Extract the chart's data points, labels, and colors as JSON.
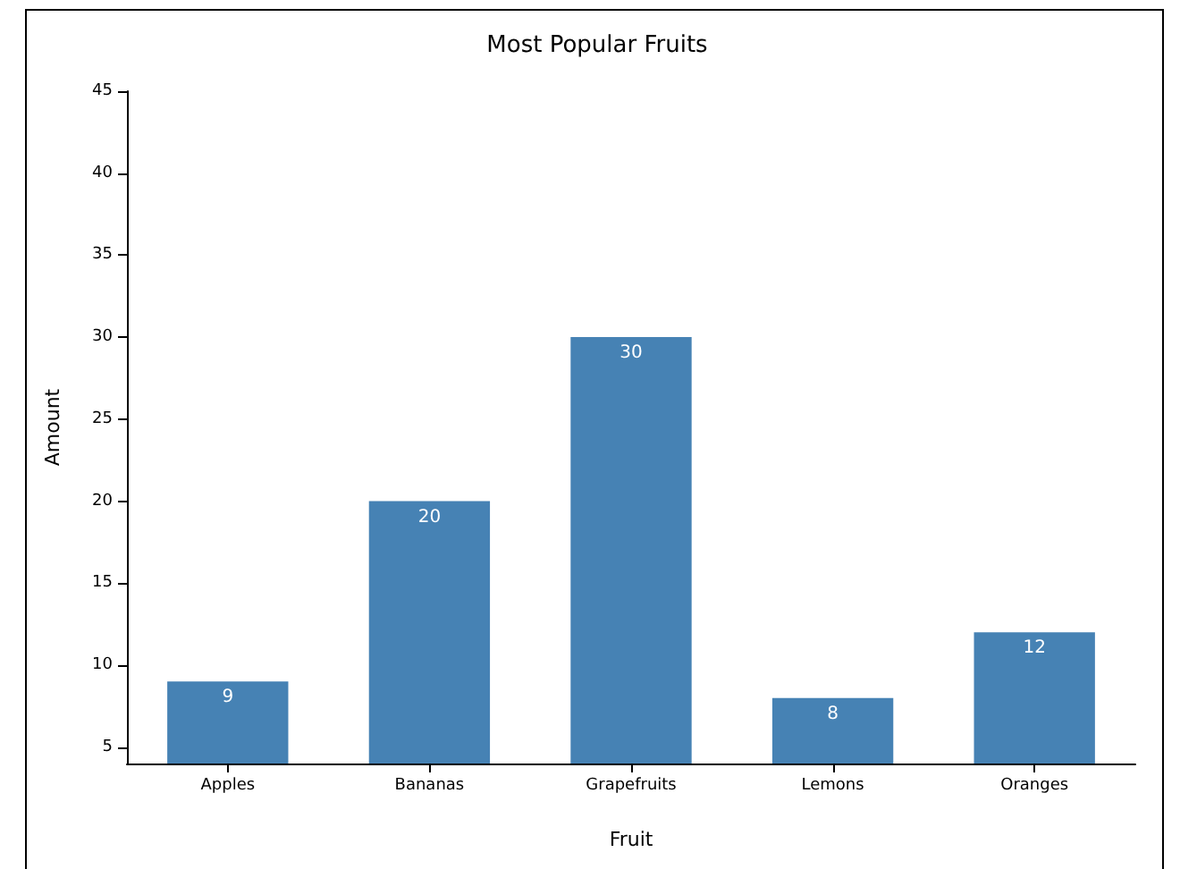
{
  "chart_data": {
    "type": "bar",
    "title": "Most Popular Fruits",
    "xlabel": "Fruit",
    "ylabel": "Amount",
    "categories": [
      "Apples",
      "Bananas",
      "Grapefruits",
      "Lemons",
      "Oranges"
    ],
    "values": [
      9,
      20,
      30,
      8,
      12
    ],
    "color": "#4682b4",
    "ylim": [
      4,
      45
    ],
    "yticks": [
      5,
      10,
      15,
      20,
      25,
      30,
      35,
      40,
      45
    ],
    "grid": false,
    "data_labels": true
  }
}
